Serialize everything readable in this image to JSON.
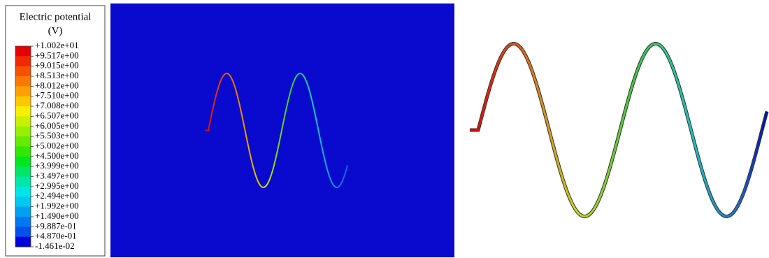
{
  "legend": {
    "title": "Electric potential",
    "unit": "(V)",
    "labels": [
      "+1.002e+01",
      "+9.517e+00",
      "+9.015e+00",
      "+8.513e+00",
      "+8.012e+00",
      "+7.510e+00",
      "+7.008e+00",
      "+6.507e+00",
      "+6.005e+00",
      "+5.503e+00",
      "+5.002e+00",
      "+4.500e+00",
      "+3.999e+00",
      "+3.497e+00",
      "+2.995e+00",
      "+2.494e+00",
      "+1.992e+00",
      "+1.490e+00",
      "+9.887e-01",
      "+4.870e-01",
      "-1.461e-02"
    ],
    "colors": [
      "#e60000",
      "#f02a00",
      "#f55200",
      "#fa7800",
      "#ffa000",
      "#ffc800",
      "#f5f000",
      "#c8f000",
      "#96f000",
      "#64eb00",
      "#32e600",
      "#00e61e",
      "#00e664",
      "#00e6aa",
      "#00e6e6",
      "#00c8f0",
      "#00a0f0",
      "#0078f0",
      "#0050eb",
      "#0000dc"
    ]
  }
}
